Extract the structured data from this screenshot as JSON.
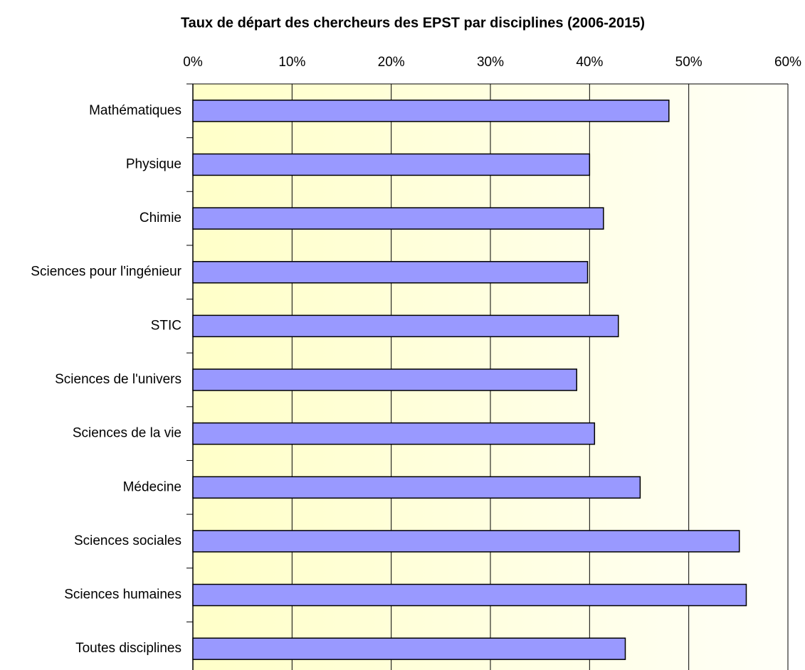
{
  "chart_data": {
    "type": "barh",
    "title": "Taux de départ des chercheurs des EPST par disciplines  (2006-2015)",
    "categories": [
      "Mathématiques",
      "Physique",
      "Chimie",
      "Sciences pour l'ingénieur",
      "STIC",
      "Sciences de l'univers",
      "Sciences de la vie",
      "Médecine",
      "Sciences sociales",
      "Sciences humaines",
      "Toutes disciplines"
    ],
    "values": [
      48,
      40,
      41.4,
      39.8,
      42.9,
      38.7,
      40.5,
      45.1,
      55.1,
      55.8,
      43.6
    ],
    "color": "#9999ff",
    "xlim": [
      0,
      60
    ],
    "xticks": [
      {
        "value": 0,
        "label": "0%"
      },
      {
        "value": 10,
        "label": "10%"
      },
      {
        "value": 20,
        "label": "20%"
      },
      {
        "value": 30,
        "label": "30%"
      },
      {
        "value": 40,
        "label": "40%"
      },
      {
        "value": 50,
        "label": "50%"
      },
      {
        "value": 60,
        "label": "60%"
      }
    ],
    "grid": true
  }
}
